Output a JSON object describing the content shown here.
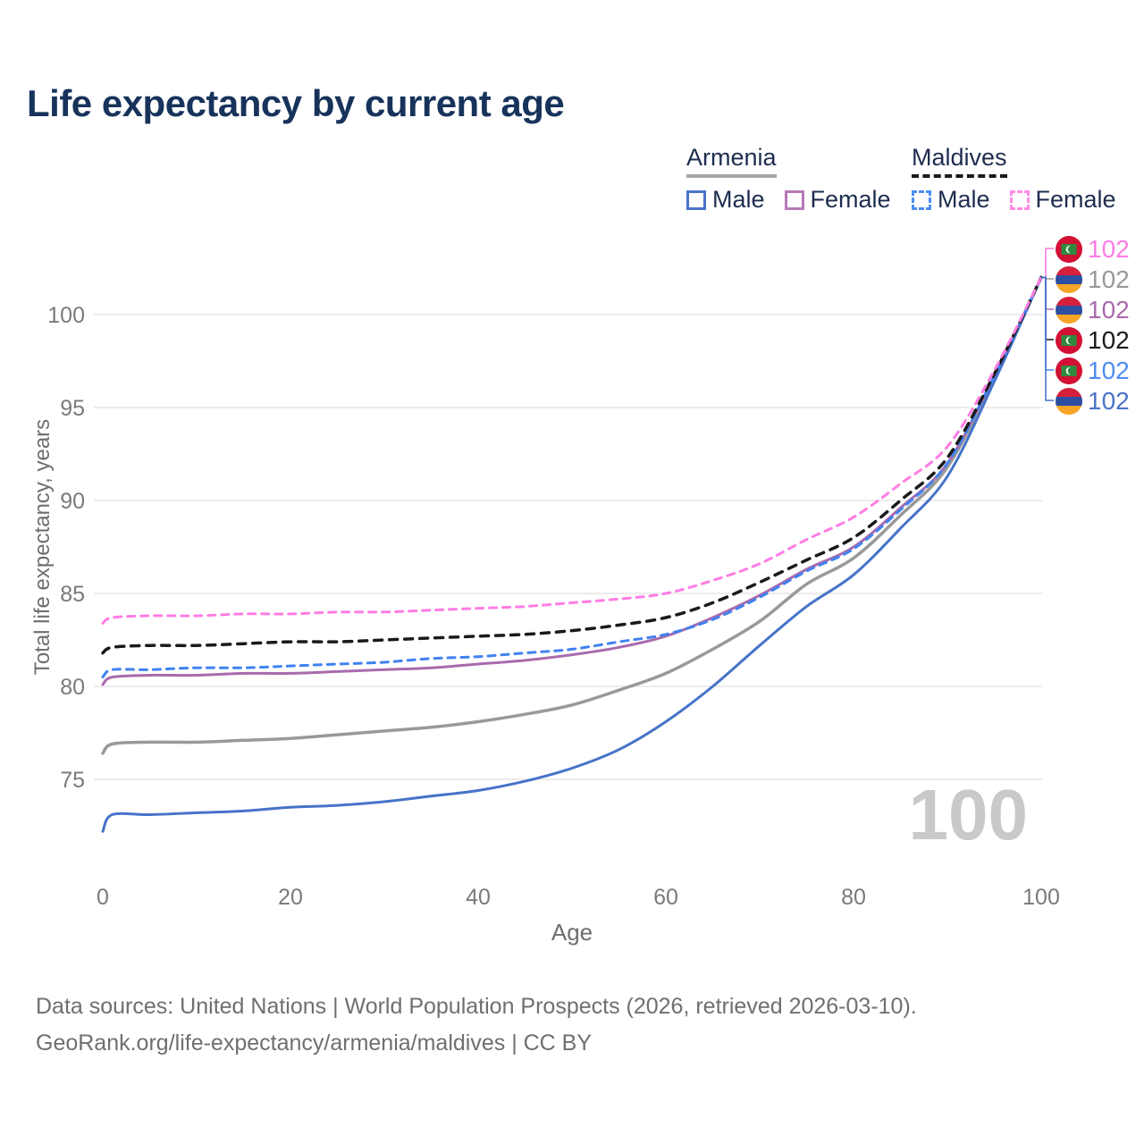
{
  "title": "Life expectancy by current age",
  "legend": {
    "groups": [
      {
        "id": "armenia",
        "name": "Armenia",
        "line_style": "solid",
        "underline_color": "#a6a6a6",
        "items": [
          {
            "id": "male",
            "label": "Male",
            "color": "#4a74c9"
          },
          {
            "id": "female",
            "label": "Female",
            "color": "#b679b6"
          }
        ]
      },
      {
        "id": "maldives",
        "name": "Maldives",
        "line_style": "dashed",
        "underline_color": "#1a1a1a",
        "items": [
          {
            "id": "male",
            "label": "Male",
            "color": "#4e8df2"
          },
          {
            "id": "female",
            "label": "Female",
            "color": "#ff8ce6"
          }
        ]
      }
    ]
  },
  "axes": {
    "y_title": "Total life expectancy, years",
    "x_title": "Age",
    "y_ticks": [
      75,
      80,
      85,
      90,
      95,
      100
    ],
    "x_ticks": [
      0,
      20,
      40,
      60,
      80,
      100
    ]
  },
  "watermark": {
    "value": "100"
  },
  "footer": {
    "line1": "Data sources: United Nations | World Population Prospects (2026, retrieved 2026-03-10).",
    "line2": "GeoRank.org/life-expectancy/armenia/maldives | CC BY"
  },
  "chart_data": {
    "type": "line",
    "title": "Life expectancy by current age",
    "xlabel": "Age",
    "ylabel": "Total life expectancy, years",
    "xlim": [
      0,
      100
    ],
    "ylim": [
      72,
      103
    ],
    "grid": "horizontal-only",
    "grid_color": "#ececec",
    "x": [
      0,
      1,
      5,
      10,
      15,
      20,
      25,
      30,
      35,
      40,
      45,
      50,
      55,
      60,
      65,
      70,
      75,
      80,
      85,
      90,
      95,
      100
    ],
    "series": [
      {
        "id": "armenia_total",
        "name": "Armenia (both sexes)",
        "country": "armenia",
        "color": "#999999",
        "dash": "",
        "width": 3.5,
        "values": [
          76.4,
          76.9,
          77.0,
          77.0,
          77.1,
          77.2,
          77.4,
          77.6,
          77.8,
          78.1,
          78.5,
          79.0,
          79.8,
          80.7,
          82.0,
          83.5,
          85.5,
          86.9,
          89.2,
          91.8,
          96.6,
          102
        ]
      },
      {
        "id": "armenia_female",
        "name": "Armenia Female",
        "country": "armenia",
        "color": "#a86bad",
        "dash": "",
        "width": 3,
        "values": [
          80.1,
          80.5,
          80.6,
          80.6,
          80.7,
          80.7,
          80.8,
          80.9,
          81.0,
          81.2,
          81.4,
          81.7,
          82.1,
          82.7,
          83.7,
          84.9,
          86.3,
          87.5,
          89.6,
          92.0,
          96.7,
          102
        ]
      },
      {
        "id": "armenia_male",
        "name": "Armenia Male",
        "country": "armenia",
        "color": "#4673c8",
        "dash": "",
        "width": 3,
        "values": [
          72.2,
          73.1,
          73.1,
          73.2,
          73.3,
          73.5,
          73.6,
          73.8,
          74.1,
          74.4,
          74.9,
          75.6,
          76.6,
          78.1,
          80.0,
          82.2,
          84.3,
          86.0,
          88.5,
          91.3,
          96.4,
          102
        ]
      },
      {
        "id": "maldives_male",
        "name": "Maldives Male",
        "country": "maldives",
        "color": "#3f82f0",
        "dash": "8 7",
        "width": 3,
        "values": [
          80.5,
          80.9,
          80.9,
          81.0,
          81.0,
          81.1,
          81.2,
          81.3,
          81.5,
          81.6,
          81.8,
          82.0,
          82.4,
          82.8,
          83.6,
          84.8,
          86.2,
          87.4,
          89.5,
          92.0,
          96.7,
          102
        ]
      },
      {
        "id": "maldives_total",
        "name": "Maldives (both sexes)",
        "country": "maldives",
        "color": "#1a1a1a",
        "dash": "9 8",
        "width": 3.5,
        "values": [
          81.8,
          82.1,
          82.2,
          82.2,
          82.3,
          82.4,
          82.4,
          82.5,
          82.6,
          82.7,
          82.8,
          83.0,
          83.3,
          83.7,
          84.5,
          85.6,
          86.8,
          88.0,
          90.0,
          92.3,
          96.8,
          102
        ]
      },
      {
        "id": "maldives_female",
        "name": "Maldives Female",
        "country": "maldives",
        "color": "#ff7ce4",
        "dash": "8 7",
        "width": 3,
        "values": [
          83.4,
          83.7,
          83.8,
          83.8,
          83.9,
          83.9,
          84.0,
          84.0,
          84.1,
          84.2,
          84.3,
          84.5,
          84.7,
          85.0,
          85.7,
          86.6,
          87.9,
          89.1,
          90.9,
          92.9,
          97.0,
          102
        ]
      }
    ],
    "end_labels": [
      {
        "series": "maldives_female",
        "flag": "maldives",
        "value": "102",
        "color": "#ff7ce4"
      },
      {
        "series": "armenia_total",
        "flag": "armenia",
        "value": "102",
        "color": "#999999"
      },
      {
        "series": "armenia_female",
        "flag": "armenia",
        "value": "102",
        "color": "#a86bad"
      },
      {
        "series": "maldives_total",
        "flag": "maldives",
        "value": "102",
        "color": "#1a1a1a"
      },
      {
        "series": "maldives_male",
        "flag": "maldives",
        "value": "102",
        "color": "#4e8df2"
      },
      {
        "series": "armenia_male",
        "flag": "armenia",
        "value": "102",
        "color": "#4a74c9"
      }
    ]
  }
}
